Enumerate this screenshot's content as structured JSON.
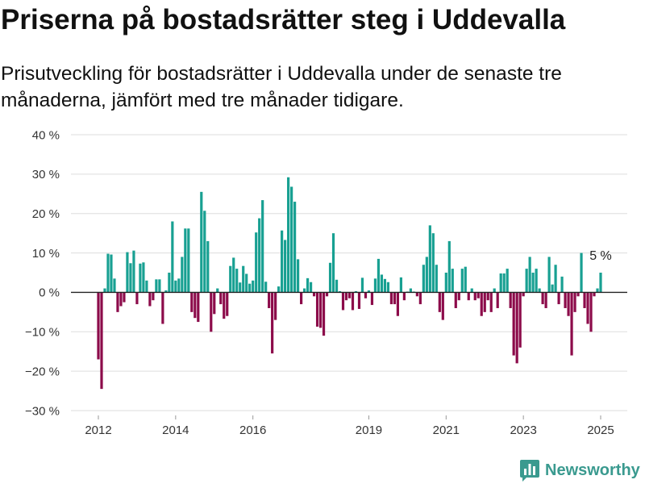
{
  "chart_data": {
    "type": "bar",
    "title": "Priserna på bostadsrätter steg i Uddevalla",
    "subtitle": "Prisutveckling för bostadsrätter i Uddevalla under de senaste tre månaderna, jämfört med tre månader tidigare.",
    "ylim": [
      -30,
      40
    ],
    "grid": "horizontal",
    "y_ticks": [
      {
        "value": 40,
        "label": "40 %"
      },
      {
        "value": 30,
        "label": "30 %"
      },
      {
        "value": 20,
        "label": "20 %"
      },
      {
        "value": 10,
        "label": "10 %"
      },
      {
        "value": 0,
        "label": "0 %"
      },
      {
        "value": -10,
        "label": "−10 %"
      },
      {
        "value": -20,
        "label": "−20 %"
      },
      {
        "value": -30,
        "label": "−30 %"
      }
    ],
    "x_ticks": [
      {
        "value": "2012-01",
        "label": "2012"
      },
      {
        "value": "2014-01",
        "label": "2014"
      },
      {
        "value": "2016-01",
        "label": "2016"
      },
      {
        "value": "2019-01",
        "label": "2019"
      },
      {
        "value": "2021-01",
        "label": "2021"
      },
      {
        "value": "2023-01",
        "label": "2023"
      },
      {
        "value": "2025-01",
        "label": "2025"
      }
    ],
    "annotations": [
      {
        "text": "5 %",
        "date": "2025-01",
        "value": 5
      }
    ],
    "colors": {
      "positive": "#18a092",
      "negative": "#8c0b4a",
      "grid": "#dddddd",
      "zero_line": "#222222",
      "axis_tick": "#999999"
    },
    "x": [
      "2012-01",
      "2012-02",
      "2012-03",
      "2012-04",
      "2012-05",
      "2012-06",
      "2012-07",
      "2012-08",
      "2012-09",
      "2012-10",
      "2012-11",
      "2012-12",
      "2013-01",
      "2013-02",
      "2013-03",
      "2013-04",
      "2013-05",
      "2013-06",
      "2013-07",
      "2013-08",
      "2013-09",
      "2013-10",
      "2013-11",
      "2013-12",
      "2014-01",
      "2014-02",
      "2014-03",
      "2014-04",
      "2014-05",
      "2014-06",
      "2014-07",
      "2014-08",
      "2014-09",
      "2014-10",
      "2014-11",
      "2014-12",
      "2015-01",
      "2015-02",
      "2015-03",
      "2015-04",
      "2015-05",
      "2015-06",
      "2015-07",
      "2015-08",
      "2015-09",
      "2015-10",
      "2015-11",
      "2015-12",
      "2016-01",
      "2016-02",
      "2016-03",
      "2016-04",
      "2016-05",
      "2016-06",
      "2016-07",
      "2016-08",
      "2016-09",
      "2016-10",
      "2016-11",
      "2016-12",
      "2017-01",
      "2017-02",
      "2017-03",
      "2017-04",
      "2017-05",
      "2017-06",
      "2017-07",
      "2017-08",
      "2017-09",
      "2017-10",
      "2017-11",
      "2017-12",
      "2018-01",
      "2018-02",
      "2018-03",
      "2018-04",
      "2018-05",
      "2018-06",
      "2018-07",
      "2018-08",
      "2018-09",
      "2018-10",
      "2018-11",
      "2018-12",
      "2019-01",
      "2019-02",
      "2019-03",
      "2019-04",
      "2019-05",
      "2019-06",
      "2019-07",
      "2019-08",
      "2019-09",
      "2019-10",
      "2019-11",
      "2019-12",
      "2020-01",
      "2020-02",
      "2020-03",
      "2020-04",
      "2020-05",
      "2020-06",
      "2020-07",
      "2020-08",
      "2020-09",
      "2020-10",
      "2020-11",
      "2020-12",
      "2021-01",
      "2021-02",
      "2021-03",
      "2021-04",
      "2021-05",
      "2021-06",
      "2021-07",
      "2021-08",
      "2021-09",
      "2021-10",
      "2021-11",
      "2021-12",
      "2022-01",
      "2022-02",
      "2022-03",
      "2022-04",
      "2022-05",
      "2022-06",
      "2022-07",
      "2022-08",
      "2022-09",
      "2022-10",
      "2022-11",
      "2022-12",
      "2023-01",
      "2023-02",
      "2023-03",
      "2023-04",
      "2023-05",
      "2023-06",
      "2023-07",
      "2023-08",
      "2023-09",
      "2023-10",
      "2023-11",
      "2023-12",
      "2024-01",
      "2024-02",
      "2024-03",
      "2024-04",
      "2024-05",
      "2024-06",
      "2024-07",
      "2024-08",
      "2024-09",
      "2024-10",
      "2024-11",
      "2024-12",
      "2025-01"
    ],
    "values": [
      -17,
      -24.5,
      1,
      9.8,
      9.6,
      3.5,
      -5,
      -3.5,
      -2.5,
      10.2,
      7.4,
      10.6,
      -3,
      7.3,
      7.6,
      3,
      -3.5,
      -2,
      3.3,
      3.3,
      -8,
      0.5,
      5,
      18,
      3,
      3.5,
      9,
      16.2,
      16.2,
      -5,
      -6.5,
      -7.5,
      25.5,
      20.7,
      13,
      -10,
      -5.5,
      1,
      -3,
      -6.7,
      -6,
      6.7,
      8.8,
      6,
      2.5,
      6.7,
      4.7,
      2.2,
      3,
      15.2,
      18.8,
      23.4,
      2.7,
      -4,
      -15.5,
      -7,
      1.5,
      15.7,
      13.3,
      29.2,
      26.8,
      23,
      8.4,
      -3,
      1,
      3.6,
      2.6,
      -1,
      -8.7,
      -9,
      -11,
      -1,
      7.5,
      15,
      3.2,
      0.3,
      -4.5,
      -2,
      -1.5,
      -4.5,
      0.3,
      -4.2,
      3.7,
      -1.5,
      0.5,
      -3.2,
      3.5,
      8.5,
      4.5,
      3.4,
      2.6,
      -3,
      -3,
      -6,
      3.8,
      -2,
      0.2,
      1,
      0.2,
      -1,
      -3,
      7,
      9,
      17,
      15,
      7,
      -5,
      -7,
      5,
      13,
      6,
      -4,
      -2,
      6,
      6.5,
      -2,
      1,
      -2,
      -1.5,
      -6,
      -5,
      -2,
      -5,
      1,
      -4,
      4.8,
      4.8,
      6,
      -4,
      -16,
      -18,
      -14,
      -1,
      6,
      9,
      5,
      6,
      1,
      -3,
      -4,
      9,
      2,
      7,
      -3,
      4,
      -4,
      -6,
      -16,
      -5,
      -1,
      10,
      -4,
      -8,
      -10,
      -1,
      1,
      5
    ]
  },
  "branding": {
    "name": "Newsworthy",
    "icon": "newsworthy-logo-icon",
    "color": "#3a9a8f"
  }
}
